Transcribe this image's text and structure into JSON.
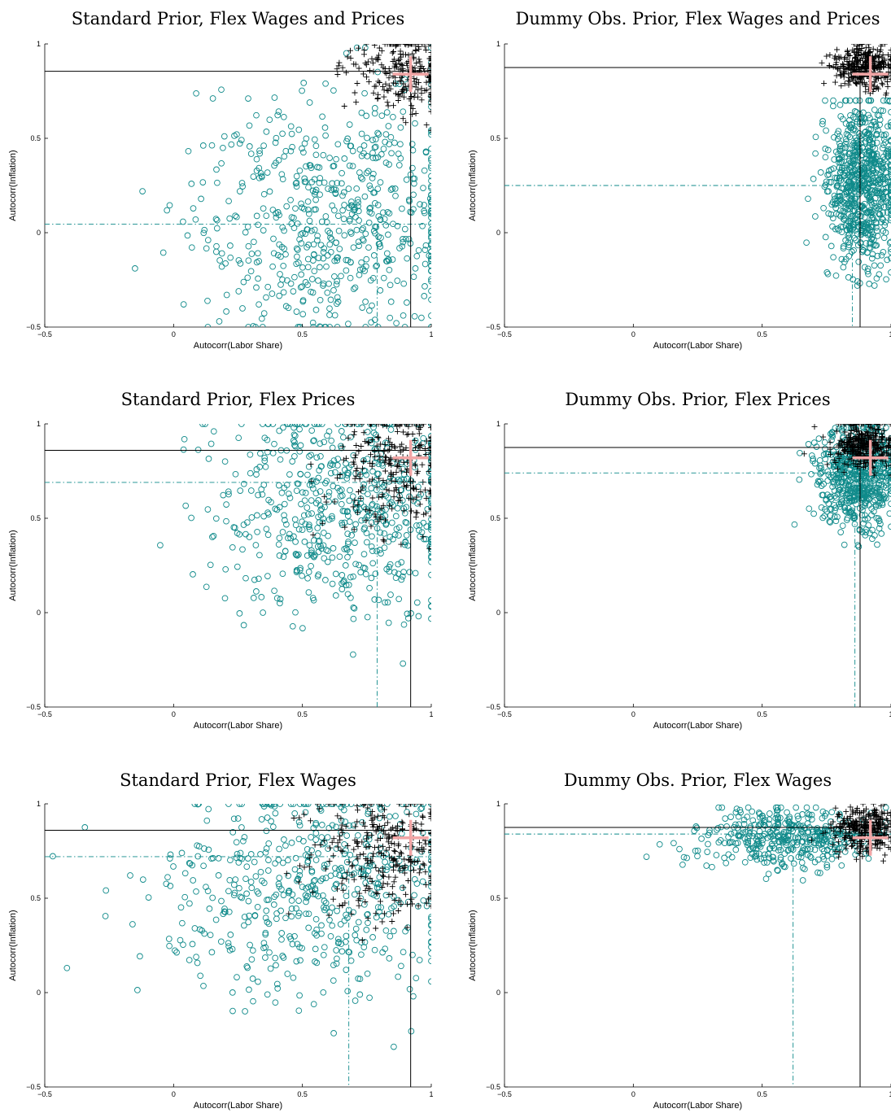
{
  "figure": {
    "colors": {
      "prior_markers": "#0f8a8a",
      "posterior_markers": "#000000",
      "data_cross": "#f2a6a6",
      "reference_lines": "#000000",
      "prior_mean_lines": "#0f8a8a"
    },
    "marker_legend": {
      "prior_draws": "circle",
      "posterior_draws": "plus",
      "data_moment": "large pink plus"
    }
  },
  "chart_data": [
    {
      "type": "scatter",
      "title": "Standard Prior, Flex Wages and Prices",
      "xlabel": "Autocorr(Labor Share)",
      "ylabel": "Autocorr(Inflation)",
      "xlim": [
        -0.5,
        1
      ],
      "ylim": [
        -0.5,
        1
      ],
      "xticks": [
        "−0.5",
        "0",
        "0.5",
        "1"
      ],
      "yticks": [
        "−0.5",
        "0",
        "0.5",
        "1"
      ],
      "grid": false,
      "data_point": [
        0.92,
        0.84
      ],
      "posterior_mean": [
        0.92,
        0.855
      ],
      "prior_mean": [
        0.79,
        0.045
      ],
      "prior_cloud": {
        "count": 620,
        "x_mean": 0.62,
        "x_sd": 0.28,
        "x_max": 1.0,
        "y_mean": 0.1,
        "y_sd": 0.33,
        "y_min": -0.5,
        "y_max": 0.98
      },
      "posterior_cloud": {
        "count": 260,
        "x_mean": 0.9,
        "x_sd": 0.1,
        "x_max": 1.0,
        "y_mean": 0.85,
        "y_sd": 0.12,
        "y_min": 0.3,
        "y_max": 1.0
      }
    },
    {
      "type": "scatter",
      "title": "Dummy Obs. Prior, Flex Wages and Prices",
      "xlabel": "Autocorr(Labor Share)",
      "ylabel": "Autocorr(Inflation)",
      "xlim": [
        -0.5,
        1
      ],
      "ylim": [
        -0.5,
        1
      ],
      "xticks": [
        "−0.5",
        "0",
        "0.5",
        "1"
      ],
      "yticks": [
        "−0.5",
        "0",
        "0.5",
        "1"
      ],
      "grid": false,
      "data_point": [
        0.92,
        0.84
      ],
      "posterior_mean": [
        0.88,
        0.875
      ],
      "prior_mean": [
        0.85,
        0.25
      ],
      "prior_cloud": {
        "count": 750,
        "x_mean": 0.89,
        "x_sd": 0.07,
        "x_max": 1.0,
        "y_mean": 0.26,
        "y_sd": 0.22,
        "y_min": -0.28,
        "y_max": 0.7
      },
      "posterior_cloud": {
        "count": 330,
        "x_mean": 0.9,
        "x_sd": 0.06,
        "x_max": 1.0,
        "y_mean": 0.88,
        "y_sd": 0.06,
        "y_min": 0.65,
        "y_max": 1.0
      }
    },
    {
      "type": "scatter",
      "title": "Standard Prior, Flex Prices",
      "xlabel": "Autocorr(Labor Share)",
      "ylabel": "Autocorr(Inflation)",
      "xlim": [
        -0.5,
        1
      ],
      "ylim": [
        -0.5,
        1
      ],
      "xticks": [
        "−0.5",
        "0",
        "0.5",
        "1"
      ],
      "yticks": [
        "−0.5",
        "0",
        "0.5",
        "1"
      ],
      "grid": false,
      "data_point": [
        0.92,
        0.82
      ],
      "posterior_mean": [
        0.92,
        0.86
      ],
      "prior_mean": [
        0.79,
        0.69
      ],
      "prior_cloud": {
        "count": 620,
        "x_mean": 0.66,
        "x_sd": 0.25,
        "x_max": 1.0,
        "y_mean": 0.58,
        "y_sd": 0.3,
        "y_min": -0.27,
        "y_max": 1.0
      },
      "posterior_cloud": {
        "count": 270,
        "x_mean": 0.86,
        "x_sd": 0.12,
        "x_max": 1.0,
        "y_mean": 0.8,
        "y_sd": 0.17,
        "y_min": 0.1,
        "y_max": 1.0
      }
    },
    {
      "type": "scatter",
      "title": "Dummy Obs. Prior, Flex Prices",
      "xlabel": "Autocorr(Labor Share)",
      "ylabel": "Autocorr(Inflation)",
      "xlim": [
        -0.5,
        1
      ],
      "ylim": [
        -0.5,
        1
      ],
      "xticks": [
        "−0.5",
        "0",
        "0.5",
        "1"
      ],
      "yticks": [
        "−0.5",
        "0",
        "0.5",
        "1"
      ],
      "grid": false,
      "data_point": [
        0.92,
        0.82
      ],
      "posterior_mean": [
        0.88,
        0.875
      ],
      "prior_mean": [
        0.86,
        0.74
      ],
      "prior_cloud": {
        "count": 620,
        "x_mean": 0.88,
        "x_sd": 0.08,
        "x_max": 1.0,
        "y_mean": 0.73,
        "y_sd": 0.14,
        "y_min": 0.2,
        "y_max": 0.98
      },
      "posterior_cloud": {
        "count": 330,
        "x_mean": 0.9,
        "x_sd": 0.06,
        "x_max": 1.0,
        "y_mean": 0.88,
        "y_sd": 0.06,
        "y_min": 0.68,
        "y_max": 1.0
      }
    },
    {
      "type": "scatter",
      "title": "Standard Prior, Flex Wages",
      "xlabel": "Autocorr(Labor Share)",
      "ylabel": "Autocorr(Inflation)",
      "xlim": [
        -0.5,
        1
      ],
      "ylim": [
        -0.5,
        1
      ],
      "xticks": [
        "−0.5",
        "0",
        "0.5",
        "1"
      ],
      "yticks": [
        "−0.5",
        "0",
        "0.5",
        "1"
      ],
      "grid": false,
      "data_point": [
        0.92,
        0.82
      ],
      "posterior_mean": [
        0.92,
        0.86
      ],
      "prior_mean": [
        0.68,
        0.72
      ],
      "prior_cloud": {
        "count": 560,
        "x_mean": 0.55,
        "x_sd": 0.3,
        "x_max": 1.0,
        "y_mean": 0.55,
        "y_sd": 0.3,
        "y_min": -0.35,
        "y_max": 1.0
      },
      "posterior_cloud": {
        "count": 300,
        "x_mean": 0.82,
        "x_sd": 0.15,
        "x_max": 1.0,
        "y_mean": 0.75,
        "y_sd": 0.18,
        "y_min": 0.1,
        "y_max": 1.0
      }
    },
    {
      "type": "scatter",
      "title": "Dummy Obs. Prior, Flex Wages",
      "xlabel": "Autocorr(Labor Share)",
      "ylabel": "Autocorr(Inflation)",
      "xlim": [
        -0.5,
        1
      ],
      "ylim": [
        -0.5,
        1
      ],
      "xticks": [
        "−0.5",
        "0",
        "0.5",
        "1"
      ],
      "yticks": [
        "−0.5",
        "0",
        "0.5",
        "1"
      ],
      "grid": false,
      "data_point": [
        0.92,
        0.82
      ],
      "posterior_mean": [
        0.88,
        0.875
      ],
      "prior_mean": [
        0.62,
        0.84
      ],
      "prior_cloud": {
        "count": 420,
        "x_mean": 0.6,
        "x_sd": 0.17,
        "x_max": 0.98,
        "y_mean": 0.82,
        "y_sd": 0.08,
        "y_min": 0.5,
        "y_max": 0.98
      },
      "posterior_cloud": {
        "count": 300,
        "x_mean": 0.9,
        "x_sd": 0.06,
        "x_max": 1.0,
        "y_mean": 0.86,
        "y_sd": 0.06,
        "y_min": 0.6,
        "y_max": 1.0
      }
    }
  ]
}
